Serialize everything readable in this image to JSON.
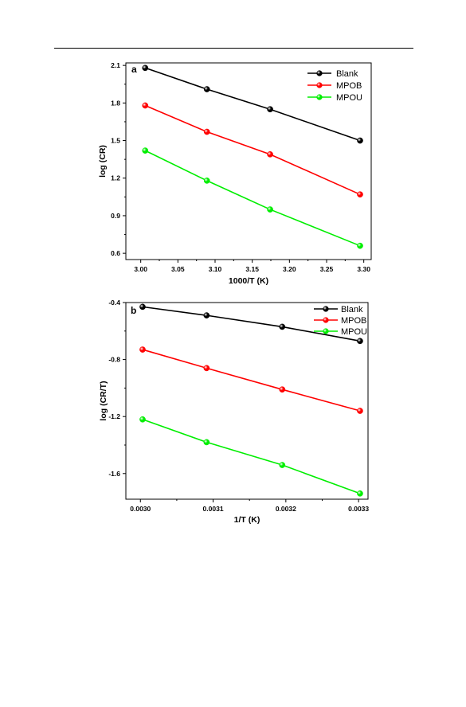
{
  "chart_data": [
    {
      "type": "line",
      "panel_label": "a",
      "xlabel": "1000/T (K)",
      "ylabel": "log (CR)",
      "xlim": [
        2.98,
        3.31
      ],
      "ylim": [
        0.55,
        2.12
      ],
      "xticks": [
        3.0,
        3.05,
        3.1,
        3.15,
        3.2,
        3.25,
        3.3
      ],
      "xtick_labels": [
        "3.00",
        "3.05",
        "3.10",
        "3.15",
        "3.20",
        "3.25",
        "3.30"
      ],
      "yticks": [
        0.6,
        0.9,
        1.2,
        1.5,
        1.8,
        2.1
      ],
      "ytick_labels": [
        "0.6",
        "0.9",
        "1.2",
        "1.5",
        "1.8",
        "2.1"
      ],
      "x": [
        3.006,
        3.089,
        3.174,
        3.295
      ],
      "series": [
        {
          "name": "Blank",
          "color": "#000000",
          "values": [
            2.08,
            1.91,
            1.75,
            1.5
          ]
        },
        {
          "name": "MPOB",
          "color": "#ff0000",
          "values": [
            1.78,
            1.57,
            1.39,
            1.07
          ]
        },
        {
          "name": "MPOU",
          "color": "#00ee00",
          "values": [
            1.42,
            1.18,
            0.95,
            0.66
          ]
        }
      ],
      "legend_position": "top-right",
      "grid": false
    },
    {
      "type": "line",
      "panel_label": "b",
      "xlabel": "1/T (K)",
      "ylabel": "log (CR/T)",
      "xlim": [
        0.00298,
        0.003313
      ],
      "ylim": [
        -1.78,
        -0.4
      ],
      "xticks": [
        0.003,
        0.0031,
        0.0032,
        0.0033
      ],
      "xtick_labels": [
        "0.0030",
        "0.0031",
        "0.0032",
        "0.0033"
      ],
      "yticks": [
        -0.4,
        -0.8,
        -1.2,
        -1.6
      ],
      "ytick_labels": [
        "-0.4",
        "-0.8",
        "-1.2",
        "-1.6"
      ],
      "x": [
        0.003003,
        0.003091,
        0.003195,
        0.003302
      ],
      "series": [
        {
          "name": "Blank",
          "color": "#000000",
          "values": [
            -0.43,
            -0.49,
            -0.57,
            -0.67
          ]
        },
        {
          "name": "MPOB",
          "color": "#ff0000",
          "values": [
            -0.73,
            -0.86,
            -1.01,
            -1.16
          ]
        },
        {
          "name": "MPOU",
          "color": "#00ee00",
          "values": [
            -1.22,
            -1.38,
            -1.54,
            -1.74
          ]
        }
      ],
      "legend_position": "top-right",
      "grid": false
    }
  ]
}
